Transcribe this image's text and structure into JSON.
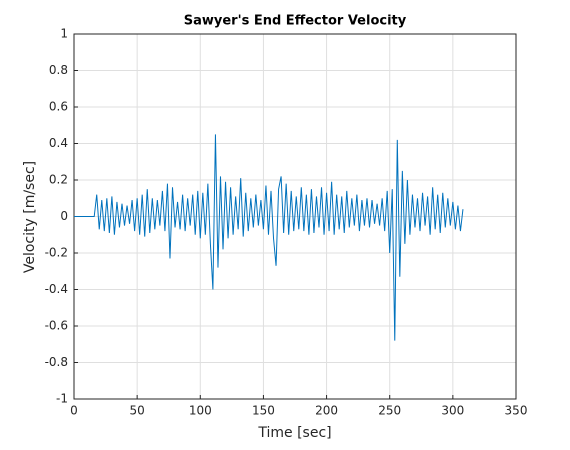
{
  "chart_data": {
    "type": "line",
    "title": "Sawyer's End Effector Velocity",
    "x_label": "Time [sec]",
    "y_label": "Velocity [m/sec]",
    "xlim": [
      0,
      350
    ],
    "xticks": [
      0,
      50,
      100,
      150,
      200,
      250,
      300,
      350
    ],
    "ylim": [
      -1,
      1
    ],
    "yticks": [
      -1,
      -0.8,
      -0.6,
      -0.4,
      -0.2,
      0,
      0.2,
      0.4,
      0.6,
      0.8,
      1
    ],
    "grid": true,
    "x": [
      0,
      2,
      4,
      6,
      8,
      10,
      12,
      14,
      16,
      18,
      20,
      22,
      24,
      26,
      28,
      30,
      32,
      34,
      36,
      38,
      40,
      42,
      44,
      46,
      48,
      50,
      52,
      54,
      56,
      58,
      60,
      62,
      64,
      66,
      68,
      70,
      72,
      74,
      76,
      78,
      80,
      82,
      84,
      86,
      88,
      90,
      92,
      94,
      96,
      98,
      100,
      102,
      104,
      106,
      108,
      110,
      112,
      114,
      116,
      118,
      120,
      122,
      124,
      126,
      128,
      130,
      132,
      134,
      136,
      138,
      140,
      142,
      144,
      146,
      148,
      150,
      152,
      154,
      156,
      158,
      160,
      162,
      164,
      166,
      168,
      170,
      172,
      174,
      176,
      178,
      180,
      182,
      184,
      186,
      188,
      190,
      192,
      194,
      196,
      198,
      200,
      202,
      204,
      206,
      208,
      210,
      212,
      214,
      216,
      218,
      220,
      222,
      224,
      226,
      228,
      230,
      232,
      234,
      236,
      238,
      240,
      242,
      244,
      246,
      248,
      250,
      252,
      254,
      256,
      258,
      260,
      262,
      264,
      266,
      268,
      270,
      272,
      274,
      276,
      278,
      280,
      282,
      284,
      286,
      288,
      290,
      292,
      294,
      296,
      298,
      300,
      302,
      304,
      306,
      308
    ],
    "series": [
      {
        "name": "velocity",
        "color": "#0072bd",
        "values": [
          0,
          0,
          0,
          0,
          0,
          0,
          0,
          0,
          0,
          0.12,
          -0.07,
          0.09,
          -0.08,
          0.1,
          -0.09,
          0.11,
          -0.1,
          0.08,
          -0.06,
          0.07,
          -0.05,
          0.06,
          -0.04,
          0.09,
          -0.08,
          0.1,
          -0.1,
          0.12,
          -0.11,
          0.15,
          -0.09,
          0.1,
          -0.07,
          0.09,
          -0.05,
          0.14,
          -0.08,
          0.18,
          -0.23,
          0.16,
          -0.06,
          0.08,
          -0.07,
          0.12,
          -0.08,
          0.1,
          -0.05,
          0.12,
          -0.1,
          0.14,
          -0.12,
          0.13,
          -0.1,
          0.18,
          -0.15,
          -0.4,
          0.45,
          -0.28,
          0.22,
          -0.18,
          0.19,
          -0.12,
          0.16,
          -0.1,
          0.11,
          -0.07,
          0.21,
          -0.11,
          0.13,
          -0.08,
          0.1,
          -0.06,
          0.12,
          -0.05,
          0.09,
          -0.07,
          0.17,
          -0.1,
          0.14,
          -0.12,
          -0.27,
          0.15,
          0.22,
          -0.09,
          0.18,
          -0.1,
          0.14,
          -0.08,
          0.11,
          -0.07,
          0.16,
          -0.08,
          0.12,
          -0.1,
          0.15,
          -0.09,
          0.11,
          -0.06,
          0.16,
          -0.1,
          0.13,
          -0.08,
          0.19,
          -0.1,
          0.12,
          -0.07,
          0.11,
          -0.09,
          0.14,
          -0.06,
          0.1,
          -0.05,
          0.12,
          -0.08,
          0.09,
          -0.05,
          0.1,
          -0.06,
          0.09,
          -0.04,
          0.07,
          -0.05,
          0.1,
          -0.08,
          0.14,
          -0.2,
          0.15,
          -0.68,
          0.42,
          -0.33,
          0.25,
          -0.15,
          0.2,
          -0.1,
          0.12,
          -0.06,
          0.1,
          -0.08,
          0.13,
          -0.05,
          0.11,
          -0.1,
          0.16,
          -0.07,
          0.12,
          -0.09,
          0.13,
          -0.06,
          0.1,
          -0.05,
          0.08,
          -0.07,
          0.06,
          -0.08,
          0.04
        ]
      }
    ]
  }
}
